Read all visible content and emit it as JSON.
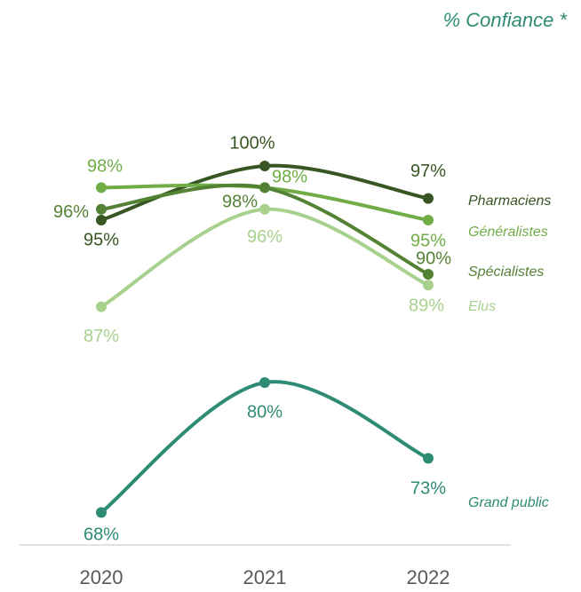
{
  "chart_data": {
    "type": "line",
    "annotation": "% Confiance *",
    "categories": [
      "2020",
      "2021",
      "2022"
    ],
    "ylim": [
      65,
      100
    ],
    "smooth": true,
    "series": [
      {
        "name": "Pharmaciens",
        "color": "#375623",
        "values": [
          95,
          100,
          97
        ],
        "value_labels": [
          "95%",
          "100%",
          "97%"
        ]
      },
      {
        "name": "Généralistes",
        "color": "#70ad47",
        "values": [
          98,
          98,
          95
        ],
        "value_labels": [
          "98%",
          "98%",
          "95%"
        ]
      },
      {
        "name": "Spécialistes",
        "color": "#548235",
        "values": [
          96,
          98,
          90
        ],
        "value_labels": [
          "96%",
          "98%",
          "90%"
        ]
      },
      {
        "name": "Elus",
        "color": "#a9d18e",
        "values": [
          87,
          96,
          89
        ],
        "value_labels": [
          "87%",
          "96%",
          "89%"
        ]
      },
      {
        "name": "Grand public",
        "color": "#2e8b74",
        "values": [
          68,
          80,
          73
        ],
        "value_labels": [
          "68%",
          "80%",
          "73%"
        ]
      }
    ]
  }
}
